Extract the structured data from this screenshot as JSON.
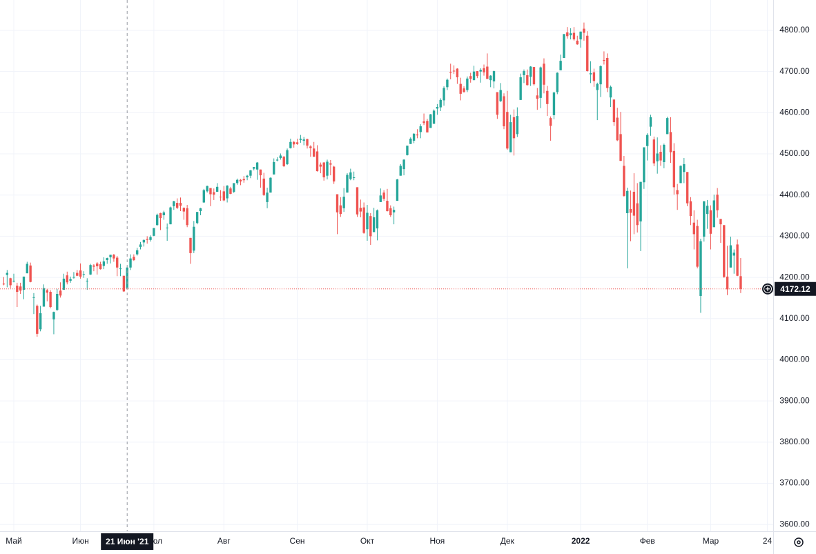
{
  "chart_data": {
    "type": "candlestick",
    "categories": [
      null,
      null,
      null,
      "Май",
      null,
      null,
      null,
      null,
      null,
      null,
      null,
      null,
      null,
      null,
      null,
      null,
      null,
      null,
      null,
      null,
      null,
      null,
      null,
      "Июн",
      null,
      null,
      null,
      null,
      null,
      null,
      null,
      null,
      null,
      null,
      null,
      null,
      null,
      null,
      null,
      null,
      null,
      null,
      null,
      null,
      null,
      "Июл",
      null,
      null,
      null,
      null,
      null,
      null,
      null,
      null,
      null,
      null,
      null,
      null,
      null,
      null,
      null,
      null,
      null,
      null,
      null,
      null,
      "Авг",
      null,
      null,
      null,
      null,
      null,
      null,
      null,
      null,
      null,
      null,
      null,
      null,
      null,
      null,
      null,
      null,
      null,
      null,
      null,
      null,
      null,
      "Сен",
      null,
      null,
      null,
      null,
      null,
      null,
      null,
      null,
      null,
      null,
      null,
      null,
      null,
      null,
      null,
      null,
      null,
      null,
      null,
      null,
      "Окт",
      null,
      null,
      null,
      null,
      null,
      null,
      null,
      null,
      null,
      null,
      null,
      null,
      null,
      null,
      null,
      null,
      null,
      null,
      null,
      null,
      "Ноя",
      null,
      null,
      null,
      null,
      null,
      null,
      null,
      null,
      null,
      null,
      null,
      null,
      null,
      null,
      null,
      null,
      null,
      null,
      null,
      null,
      "Дек",
      null,
      null,
      null,
      null,
      null,
      null,
      null,
      null,
      null,
      null,
      null,
      null,
      null,
      null,
      null,
      null,
      null,
      null,
      null,
      null,
      null,
      "2022",
      null,
      null,
      null,
      null,
      null,
      null,
      null,
      null,
      null,
      null,
      null,
      null,
      null,
      null,
      null,
      null,
      null,
      null,
      null,
      "Фев",
      null,
      null,
      null,
      null,
      null,
      null,
      null,
      null,
      null,
      null,
      null,
      null,
      null,
      null,
      null,
      null,
      null,
      null,
      "Мар",
      null,
      null,
      null,
      null,
      null,
      null,
      null,
      null,
      null,
      null,
      null,
      null,
      null,
      null,
      null,
      null,
      "24"
    ],
    "open": [
      4185,
      4206,
      4198,
      4191,
      4180,
      4178,
      4170,
      4210,
      4229,
      4151,
      4131,
      4074,
      4129,
      4169,
      4165,
      4098,
      4121,
      4168,
      4170,
      4205,
      4192,
      4201,
      4211,
      4217,
      4207,
      4191,
      4207,
      4229,
      4234,
      4232,
      4228,
      4242,
      4249,
      4255,
      4248,
      4220,
      4204,
      4173,
      4224,
      4250,
      4256,
      4274,
      4285,
      4293,
      4291,
      4301,
      4327,
      4356,
      4351,
      4321,
      4329,
      4373,
      4381,
      4381,
      4369,
      4368,
      4296,
      4265,
      4332,
      4361,
      4382,
      4409,
      4417,
      4407,
      4408,
      4396,
      4409,
      4392,
      4416,
      4408,
      4429,
      4437,
      4439,
      4443,
      4447,
      4464,
      4462,
      4462,
      4440,
      4383,
      4406,
      4450,
      4484,
      4490,
      4493,
      4475,
      4514,
      4529,
      4528,
      4534,
      4532,
      4536,
      4518,
      4513,
      4506,
      4474,
      4479,
      4447,
      4477,
      4469,
      4402,
      4375,
      4368,
      4406,
      4439,
      4443,
      4419,
      4369,
      4370,
      4317,
      4349,
      4310,
      4319,
      4383,
      4406,
      4386,
      4368,
      4358,
      4386,
      4447,
      4463,
      4497,
      4524,
      4532,
      4547,
      4553,
      4579,
      4580,
      4563,
      4573,
      4610,
      4613,
      4630,
      4662,
      4699,
      4702,
      4707,
      4670,
      4659,
      4655,
      4689,
      4679,
      4701,
      4700,
      4708,
      4712,
      4679,
      4676,
      4650,
      4628,
      4640,
      4602,
      4504,
      4589,
      4548,
      4631,
      4691,
      4691,
      4687,
      4711,
      4642,
      4636,
      4719,
      4653,
      4587,
      4594,
      4650,
      4703,
      4733,
      4795,
      4788,
      4794,
      4775,
      4778,
      4804,
      4787,
      4693,
      4698,
      4655,
      4669,
      4728,
      4733,
      4637,
      4632,
      4588,
      4548,
      4471,
      4356,
      4366,
      4408,
      4380,
      4336,
      4431,
      4519,
      4566,
      4535,
      4482,
      4505,
      4480,
      4548,
      4553,
      4507,
      4412,
      4429,
      4456,
      4456,
      4385,
      4333,
      4325,
      4155,
      4299,
      4354,
      4363,
      4322,
      4401,
      4342,
      4327,
      4202,
      4224,
      4253,
      4280,
      4203,
      null,
      null,
      null,
      null,
      null,
      null,
      null,
      null
    ],
    "high": [
      4201,
      4218,
      4199,
      4209,
      4187,
      4187,
      4202,
      4238,
      4236,
      4162,
      4134,
      4131,
      4183,
      4172,
      4169,
      4117,
      4172,
      4188,
      4209,
      4214,
      4202,
      4213,
      4218,
      4234,
      4215,
      4198,
      4233,
      4232,
      4237,
      4238,
      4249,
      4248,
      4255,
      4257,
      4252,
      4233,
      4204,
      4226,
      4256,
      4256,
      4272,
      4286,
      4292,
      4300,
      4302,
      4320,
      4355,
      4357,
      4362,
      4331,
      4372,
      4386,
      4392,
      4394,
      4370,
      4376,
      4296,
      4337,
      4359,
      4369,
      4415,
      4423,
      4417,
      4416,
      4429,
      4412,
      4422,
      4424,
      4420,
      4429,
      4440,
      4439,
      4446,
      4449,
      4461,
      4468,
      4480,
      4462,
      4454,
      4418,
      4443,
      4489,
      4492,
      4501,
      4495,
      4513,
      4537,
      4531,
      4537,
      4546,
      4541,
      4537,
      4521,
      4529,
      4521,
      4479,
      4480,
      4486,
      4485,
      4471,
      4402,
      4395,
      4417,
      4453,
      4464,
      4457,
      4419,
      4389,
      4382,
      4376,
      4356,
      4369,
      4365,
      4416,
      4412,
      4415,
      4375,
      4372,
      4439,
      4475,
      4487,
      4520,
      4540,
      4550,
      4560,
      4572,
      4598,
      4585,
      4597,
      4608,
      4621,
      4635,
      4664,
      4683,
      4719,
      4715,
      4708,
      4685,
      4664,
      4688,
      4697,
      4714,
      4701,
      4708,
      4717,
      4744,
      4691,
      4702,
      4650,
      4672,
      4647,
      4653,
      4595,
      4608,
      4613,
      4695,
      4705,
      4705,
      4713,
      4711,
      4660,
      4712,
      4732,
      4665,
      4591,
      4651,
      4698,
      4741,
      4791,
      4808,
      4805,
      4808,
      4787,
      4797,
      4819,
      4798,
      4725,
      4707,
      4673,
      4715,
      4749,
      4744,
      4666,
      4632,
      4612,
      4602,
      4495,
      4418,
      4411,
      4453,
      4429,
      4432,
      4516,
      4550,
      4595,
      4542,
      4540,
      4521,
      4525,
      4590,
      4589,
      4526,
      4427,
      4472,
      4490,
      4456,
      4395,
      4363,
      4340,
      4294,
      4385,
      4388,
      4375,
      4401,
      4417,
      4342,
      4327,
      4277,
      4299,
      4268,
      4292,
      4247,
      null,
      null,
      null,
      null,
      null,
      null,
      null,
      null
    ],
    "low": [
      4181,
      4176,
      4174,
      4188,
      4128,
      4160,
      4147,
      4210,
      4188,
      4111,
      4056,
      4069,
      4129,
      4142,
      4125,
      4062,
      4119,
      4151,
      4170,
      4183,
      4187,
      4197,
      4203,
      4197,
      4199,
      4170,
      4206,
      4215,
      4207,
      4219,
      4220,
      4233,
      4234,
      4238,
      4203,
      4203,
      4165,
      4173,
      4218,
      4240,
      4253,
      4268,
      4275,
      4282,
      4287,
      4300,
      4326,
      4315,
      4340,
      4289,
      4329,
      4364,
      4366,
      4361,
      4340,
      4322,
      4233,
      4259,
      4329,
      4351,
      4381,
      4406,
      4373,
      4388,
      4408,
      4386,
      4385,
      4382,
      4402,
      4405,
      4425,
      4424,
      4430,
      4436,
      4441,
      4460,
      4437,
      4418,
      4398,
      4368,
      4406,
      4450,
      4482,
      4486,
      4468,
      4473,
      4513,
      4515,
      4522,
      4527,
      4521,
      4513,
      4493,
      4493,
      4457,
      4453,
      4435,
      4438,
      4448,
      4427,
      4305,
      4347,
      4359,
      4406,
      4436,
      4436,
      4347,
      4346,
      4306,
      4289,
      4279,
      4310,
      4290,
      4383,
      4386,
      4360,
      4347,
      4329,
      4386,
      4447,
      4448,
      4496,
      4524,
      4526,
      4538,
      4538,
      4570,
      4552,
      4563,
      4573,
      4595,
      4604,
      4617,
      4655,
      4681,
      4694,
      4670,
      4630,
      4649,
      4650,
      4673,
      4679,
      4684,
      4673,
      4690,
      4682,
      4662,
      4659,
      4585,
      4626,
      4560,
      4510,
      4504,
      4496,
      4541,
      4631,
      4672,
      4666,
      4665,
      4666,
      4607,
      4611,
      4647,
      4592,
      4532,
      4584,
      4645,
      4703,
      4733,
      4780,
      4778,
      4775,
      4765,
      4758,
      4775,
      4700,
      4672,
      4663,
      4582,
      4638,
      4717,
      4650,
      4614,
      4568,
      4531,
      4483,
      4396,
      4222,
      4288,
      4305,
      4309,
      4264,
      4415,
      4484,
      4544,
      4470,
      4452,
      4471,
      4465,
      4548,
      4478,
      4401,
      4364,
      4429,
      4429,
      4373,
      4327,
      4268,
      4222,
      4114,
      4287,
      4318,
      4268,
      4322,
      4345,
      4284,
      4199,
      4157,
      4224,
      4209,
      4203,
      4162,
      null,
      null,
      null,
      null,
      null,
      null,
      null,
      null
    ],
    "close": [
      4183,
      4211,
      4181,
      4192,
      4165,
      4168,
      4202,
      4233,
      4189,
      4152,
      4063,
      4113,
      4174,
      4163,
      4128,
      4116,
      4160,
      4156,
      4197,
      4188,
      4196,
      4201,
      4204,
      4202,
      4208,
      4192,
      4230,
      4226,
      4227,
      4220,
      4239,
      4247,
      4255,
      4246,
      4224,
      4222,
      4166,
      4224,
      4246,
      4242,
      4266,
      4280,
      4291,
      4291,
      4298,
      4320,
      4352,
      4344,
      4358,
      4321,
      4370,
      4385,
      4369,
      4374,
      4360,
      4327,
      4259,
      4323,
      4359,
      4368,
      4412,
      4422,
      4402,
      4401,
      4420,
      4395,
      4387,
      4423,
      4403,
      4429,
      4437,
      4433,
      4436,
      4447,
      4460,
      4468,
      4479,
      4448,
      4400,
      4406,
      4442,
      4480,
      4486,
      4496,
      4470,
      4509,
      4529,
      4523,
      4524,
      4537,
      4535,
      4520,
      4514,
      4493,
      4458,
      4469,
      4443,
      4481,
      4474,
      4433,
      4358,
      4354,
      4396,
      4449,
      4455,
      4443,
      4353,
      4360,
      4308,
      4357,
      4300,
      4346,
      4363,
      4399,
      4391,
      4361,
      4351,
      4364,
      4438,
      4471,
      4486,
      4520,
      4537,
      4549,
      4545,
      4567,
      4575,
      4552,
      4596,
      4605,
      4614,
      4631,
      4660,
      4680,
      4697,
      4701,
      4686,
      4646,
      4650,
      4683,
      4682,
      4700,
      4689,
      4704,
      4698,
      4682,
      4690,
      4701,
      4595,
      4655,
      4567,
      4513,
      4577,
      4538,
      4592,
      4686,
      4701,
      4667,
      4712,
      4669,
      4634,
      4710,
      4668,
      4621,
      4568,
      4649,
      4697,
      4726,
      4791,
      4786,
      4793,
      4778,
      4766,
      4797,
      4794,
      4701,
      4696,
      4677,
      4670,
      4713,
      4726,
      4660,
      4663,
      4577,
      4533,
      4483,
      4398,
      4410,
      4357,
      4350,
      4327,
      4432,
      4516,
      4546,
      4589,
      4477,
      4501,
      4484,
      4522,
      4587,
      4504,
      4419,
      4402,
      4471,
      4475,
      4380,
      4349,
      4305,
      4226,
      4288,
      4385,
      4374,
      4306,
      4387,
      4363,
      4329,
      4201,
      4171,
      4278,
      4260,
      4204,
      4172.12,
      null,
      null,
      null,
      null,
      null,
      null,
      null,
      null
    ],
    "up_color": "#26a69a",
    "down_color": "#ef5350",
    "last_price": 4172.12,
    "crosshair_label": "21 Июн '21",
    "ylim": [
      3583.6,
      4873.7
    ],
    "yticks": [
      {
        "value": 3600,
        "label": "3600.00"
      },
      {
        "value": 3700,
        "label": "3700.00"
      },
      {
        "value": 3800,
        "label": "3800.00"
      },
      {
        "value": 3900,
        "label": "3900.00"
      },
      {
        "value": 4000,
        "label": "4000.00"
      },
      {
        "value": 4100,
        "label": "4100.00"
      },
      {
        "value": 4200,
        "label": "4200.00"
      },
      {
        "value": 4300,
        "label": "4300.00"
      },
      {
        "value": 4400,
        "label": "4400.00"
      },
      {
        "value": 4500,
        "label": "4500.00"
      },
      {
        "value": 4600,
        "label": "4600.00"
      },
      {
        "value": 4700,
        "label": "4700.00"
      },
      {
        "value": 4800,
        "label": "4800.00"
      }
    ],
    "grid": true
  }
}
